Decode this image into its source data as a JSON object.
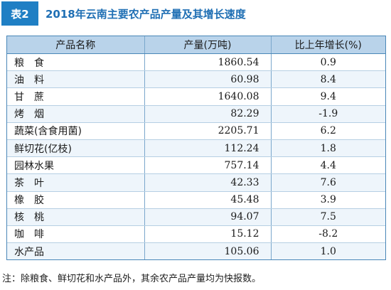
{
  "title": {
    "badge": "表2",
    "text": "2018年云南主要农产品产量及其增长速度"
  },
  "table": {
    "headers": [
      "产品名称",
      "产量(万吨)",
      "比上年增长(%)"
    ],
    "rows": [
      [
        "粮　食",
        "1860.54",
        "0.9"
      ],
      [
        "油　料",
        "60.98",
        "8.4"
      ],
      [
        "甘　蔗",
        "1640.08",
        "9.4"
      ],
      [
        "烤　烟",
        "82.29",
        "-1.9"
      ],
      [
        "蔬菜(含食用菌)",
        "2205.71",
        "6.2"
      ],
      [
        "鲜切花(亿枝)",
        "112.24",
        "1.8"
      ],
      [
        "园林水果",
        "757.14",
        "4.4"
      ],
      [
        "茶　叶",
        "42.33",
        "7.6"
      ],
      [
        "橡　胶",
        "45.48",
        "3.9"
      ],
      [
        "核　桃",
        "94.07",
        "7.5"
      ],
      [
        "咖　啡",
        "15.12",
        "-8.2"
      ],
      [
        "水产品",
        "105.06",
        "1.0"
      ]
    ]
  },
  "note": "注：除粮食、鲜切花和水产品外，其余农产品产量均为快报数。",
  "colors": {
    "badge_bg": "#1f7fc4",
    "title_text": "#1f6fb4",
    "header_bg": "#b9d3ea",
    "row_alt_bg": "#eef5fb"
  }
}
